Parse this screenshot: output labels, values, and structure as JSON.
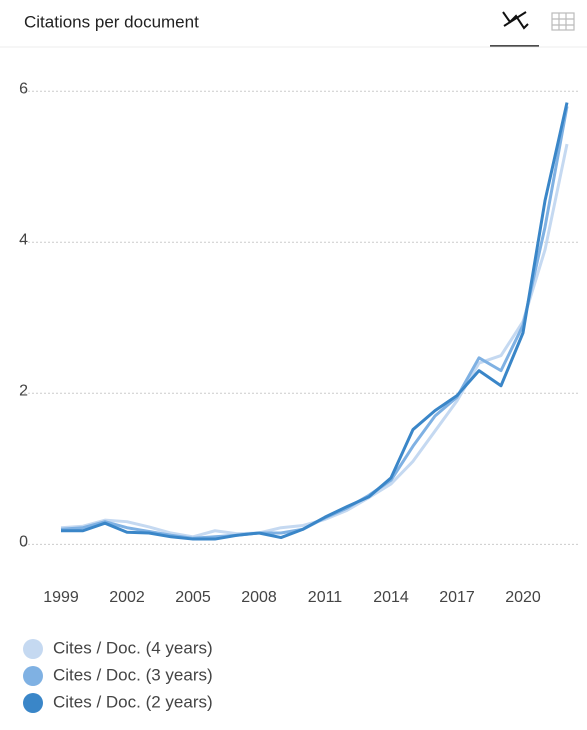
{
  "chart_data": {
    "type": "line",
    "title": "Citations per document",
    "x": [
      1999,
      2000,
      2001,
      2002,
      2003,
      2004,
      2005,
      2006,
      2007,
      2008,
      2009,
      2010,
      2011,
      2012,
      2013,
      2014,
      2015,
      2016,
      2017,
      2018,
      2019,
      2020,
      2021,
      2022
    ],
    "xlim": [
      1998,
      2022.5
    ],
    "xticks": [
      1999,
      2002,
      2005,
      2008,
      2011,
      2014,
      2017,
      2020
    ],
    "ylim": [
      -0.3,
      6.4
    ],
    "yticks": [
      0,
      2,
      4,
      6
    ],
    "grid": true,
    "legend": "bottom",
    "series": [
      {
        "name": "Cites / Doc. (4 years)",
        "color": "#c5d9f1",
        "values": [
          0.22,
          0.24,
          0.32,
          0.3,
          0.23,
          0.15,
          0.1,
          0.18,
          0.14,
          0.15,
          0.22,
          0.25,
          0.33,
          0.45,
          0.62,
          0.8,
          1.1,
          1.5,
          1.9,
          2.4,
          2.5,
          2.95,
          3.9,
          5.3
        ]
      },
      {
        "name": "Cites / Doc. (3 years)",
        "color": "#7fb1e3",
        "values": [
          0.2,
          0.22,
          0.3,
          0.22,
          0.17,
          0.12,
          0.08,
          0.1,
          0.12,
          0.15,
          0.15,
          0.2,
          0.35,
          0.48,
          0.65,
          0.85,
          1.3,
          1.7,
          1.95,
          2.47,
          2.3,
          2.9,
          4.2,
          5.8
        ]
      },
      {
        "name": "Cites / Doc. (2 years)",
        "color": "#3a86c8",
        "values": [
          0.18,
          0.18,
          0.28,
          0.16,
          0.15,
          0.1,
          0.07,
          0.07,
          0.12,
          0.15,
          0.09,
          0.2,
          0.36,
          0.5,
          0.63,
          0.88,
          1.52,
          1.77,
          1.97,
          2.3,
          2.1,
          2.8,
          4.55,
          5.85
        ]
      }
    ]
  }
}
